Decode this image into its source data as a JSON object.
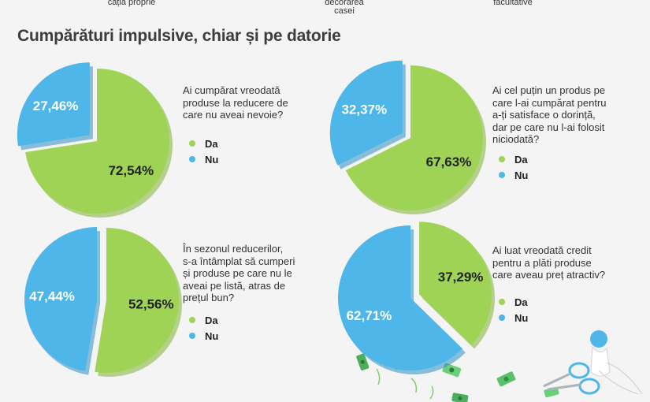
{
  "header_fragments": [
    "cația proprie",
    "decorarea\ncasei",
    "facultative"
  ],
  "title": "Cumpărături impulsive, chiar și pe datorie",
  "colors": {
    "da": "#9ed356",
    "nu": "#4fb6ea",
    "da_dark": "#7fb335",
    "nu_dark": "#2f8fc4"
  },
  "legend": {
    "da": "Da",
    "nu": "Nu"
  },
  "chart_data": [
    {
      "type": "pie",
      "question": "Ai cumpărat vreodată\nproduse la reducere de\ncare nu aveai nevoie?",
      "categories": [
        "Da",
        "Nu"
      ],
      "values": [
        72.54,
        27.46
      ],
      "labels": [
        "72,54%",
        "27,46%"
      ],
      "highlight": "Nu"
    },
    {
      "type": "pie",
      "question": "Ai cel puțin un produs pe\ncare l-ai cumpărat pentru\na-ți satisface o dorință,\ndar pe care nu l-ai folosit\nniciodată?",
      "categories": [
        "Da",
        "Nu"
      ],
      "values": [
        67.63,
        32.37
      ],
      "labels": [
        "67,63%",
        "32,37%"
      ],
      "highlight": "Nu"
    },
    {
      "type": "pie",
      "question": "În sezonul reducerilor,\ns-a întâmplat să cumperi\nși produse pe care nu le\naveai pe listă, atras de\nprețul bun?",
      "categories": [
        "Da",
        "Nu"
      ],
      "values": [
        52.56,
        47.44
      ],
      "labels": [
        "52,56%",
        "47,44%"
      ],
      "highlight": "Da"
    },
    {
      "type": "pie",
      "question": "Ai luat vreodată credit\npentru a plăti produse\ncare aveau preț atractiv?",
      "categories": [
        "Da",
        "Nu"
      ],
      "values": [
        37.29,
        62.71
      ],
      "labels": [
        "37,29%",
        "62,71%"
      ],
      "highlight": "Da"
    }
  ]
}
